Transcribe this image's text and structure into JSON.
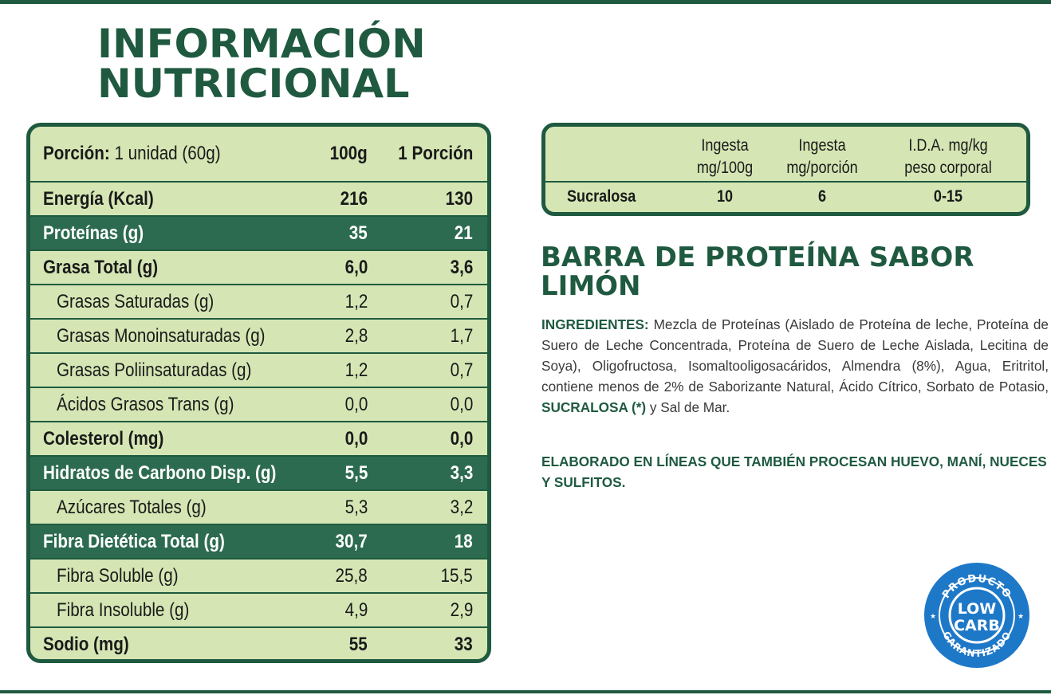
{
  "title": {
    "line1": "INFORMACIÓN",
    "line2": "NUTRICIONAL"
  },
  "nutrition": {
    "header": {
      "portion_label": "Porción:",
      "portion_value": "1 unidad (60g)",
      "col1": "100g",
      "col2": "1 Porción"
    },
    "rows": [
      {
        "label": "Energía (Kcal)",
        "v100": "216",
        "vportion": "130"
      },
      {
        "label": "Proteínas (g)",
        "v100": "35",
        "vportion": "21"
      },
      {
        "label": "Grasa Total (g)",
        "v100": "6,0",
        "vportion": "3,6"
      },
      {
        "label": "Grasas Saturadas (g)",
        "v100": "1,2",
        "vportion": "0,7"
      },
      {
        "label": "Grasas Monoinsaturadas (g)",
        "v100": "2,8",
        "vportion": "1,7"
      },
      {
        "label": "Grasas Poliinsaturadas (g)",
        "v100": "1,2",
        "vportion": "0,7"
      },
      {
        "label": "Ácidos Grasos Trans (g)",
        "v100": "0,0",
        "vportion": "0,0"
      },
      {
        "label": "Colesterol (mg)",
        "v100": "0,0",
        "vportion": "0,0"
      },
      {
        "label": "Hidratos de Carbono Disp. (g)",
        "v100": "5,5",
        "vportion": "3,3"
      },
      {
        "label": "Azúcares Totales (g)",
        "v100": "5,3",
        "vportion": "3,2"
      },
      {
        "label": "Fibra Dietética Total (g)",
        "v100": "30,7",
        "vportion": "18"
      },
      {
        "label": "Fibra Soluble (g)",
        "v100": "25,8",
        "vportion": "15,5"
      },
      {
        "label": "Fibra Insoluble (g)",
        "v100": "4,9",
        "vportion": "2,9"
      },
      {
        "label": "Sodio (mg)",
        "v100": "55",
        "vportion": "33"
      }
    ]
  },
  "sucralose_table": {
    "headers": [
      {
        "line1": "Ingesta",
        "line2": "mg/100g"
      },
      {
        "line1": "Ingesta",
        "line2": "mg/porción"
      },
      {
        "line1": "I.D.A. mg/kg",
        "line2": "peso corporal"
      }
    ],
    "row": {
      "name": "Sucralosa",
      "v1": "10",
      "v2": "6",
      "v3": "0-15"
    }
  },
  "product": {
    "title": "BARRA DE PROTEÍNA SABOR LIMÓN",
    "ingredients_label": "INGREDIENTES:",
    "ingredients_text": "Mezcla de Proteínas (Aislado de Proteína de leche, Proteína de Suero de Leche Concentrada, Proteína de Suero de Leche Aislada, Lecitina de Soya), Oligofructosa, Isomaltooligosacáridos, Almendra (8%), Agua, Eritritol, contiene menos de 2% de Saborizante Natural, Ácido Cítrico, Sorbato de Potasio,",
    "ingredients_highlight": "SUCRALOSA (*)",
    "ingredients_end": "y Sal de Mar.",
    "allergen_text": "ELABORADO EN LÍNEAS QUE TAMBIÉN PROCESAN HUEVO, MANÍ, NUECES Y SULFITOS."
  },
  "badge": {
    "top_text": "PRODUCTO",
    "line1": "LOW",
    "line2": "CARB",
    "bottom_text": "GARANTIZADO"
  },
  "colors": {
    "brand_green": "#1f5a40",
    "row_dark": "#2c6b50",
    "table_bg": "#d5e6b4",
    "badge_blue": "#1e78c8"
  }
}
